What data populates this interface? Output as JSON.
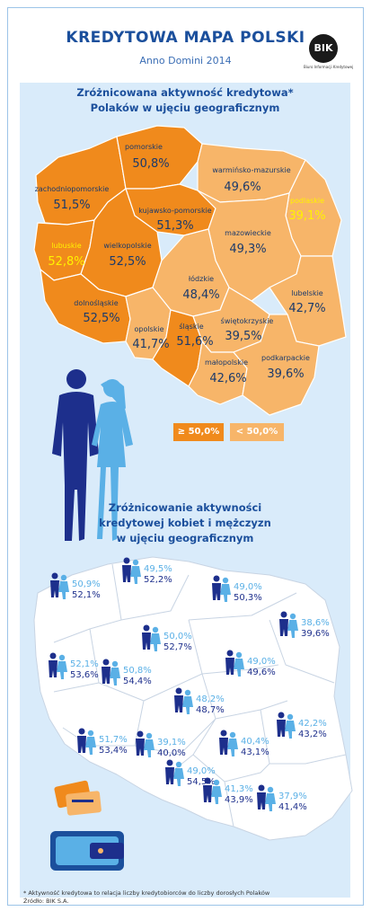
{
  "header": {
    "title": "KREDYTOWA MAPA POLSKI",
    "subtitle": "Anno Domini 2014",
    "logo_text": "BIK",
    "logo_tagline": "Biuro Informacji Kredytowej"
  },
  "section1": {
    "heading_line1": "Zróżnicowana aktywność kredytowa*",
    "heading_line2": "Polaków w ujęciu geograficznym",
    "regions": [
      {
        "name": "pomorskie",
        "value": "50,8%"
      },
      {
        "name": "zachodniopomorskie",
        "value": "51,5%"
      },
      {
        "name": "warmińsko-mazurskie",
        "value": "49,6%"
      },
      {
        "name": "podlaskie",
        "value": "39,1%"
      },
      {
        "name": "kujawsko-pomorskie",
        "value": "51,3%"
      },
      {
        "name": "lubuskie",
        "value": "52,8%"
      },
      {
        "name": "wielkopolskie",
        "value": "52,5%"
      },
      {
        "name": "mazowieckie",
        "value": "49,3%"
      },
      {
        "name": "łódzkie",
        "value": "48,4%"
      },
      {
        "name": "lubelskie",
        "value": "42,7%"
      },
      {
        "name": "dolnośląskie",
        "value": "52,5%"
      },
      {
        "name": "opolskie",
        "value": "41,7%"
      },
      {
        "name": "śląskie",
        "value": "51,6%"
      },
      {
        "name": "świętokrzyskie",
        "value": "39,5%"
      },
      {
        "name": "małopolskie",
        "value": "42,6%"
      },
      {
        "name": "podkarpackie",
        "value": "39,6%"
      }
    ],
    "legend": {
      "high": "≥ 50,0%",
      "low": "< 50,0%"
    }
  },
  "section2": {
    "heading_line1": "Zróżnicowanie aktywności",
    "heading_line2": "kredytowej kobiet i mężczyzn",
    "heading_line3": "w ujęciu geograficznym",
    "regions": [
      {
        "women": "49,5%",
        "men": "52,2%"
      },
      {
        "women": "50,9%",
        "men": "52,1%"
      },
      {
        "women": "49,0%",
        "men": "50,3%"
      },
      {
        "women": "38,6%",
        "men": "39,6%"
      },
      {
        "women": "50,0%",
        "men": "52,7%"
      },
      {
        "women": "50,8%",
        "men": "54,4%"
      },
      {
        "women": "49,0%",
        "men": "49,6%"
      },
      {
        "women": "52,1%",
        "men": "53,6%"
      },
      {
        "women": "48,2%",
        "men": "48,7%"
      },
      {
        "women": "42,2%",
        "men": "43,2%"
      },
      {
        "women": "51,7%",
        "men": "53,4%"
      },
      {
        "women": "39,1%",
        "men": "40,0%"
      },
      {
        "women": "40,4%",
        "men": "43,1%"
      },
      {
        "women": "49,0%",
        "men": "54,5%"
      },
      {
        "women": "41,3%",
        "men": "43,9%"
      },
      {
        "women": "37,9%",
        "men": "41,4%"
      }
    ]
  },
  "colors": {
    "title": "#1b4f9c",
    "panel": "#d9ebfa",
    "dark_orange": "#f08a1c",
    "light_orange": "#f7b569",
    "highlight": "#fff200",
    "man": "#1d2f8c",
    "woman": "#5ab0e6"
  },
  "footnote": {
    "line1": "* Aktywność kredytowa to relacja liczby kredytobiorców do liczby dorosłych Polaków",
    "line2": "Źródło: BIK S.A."
  }
}
